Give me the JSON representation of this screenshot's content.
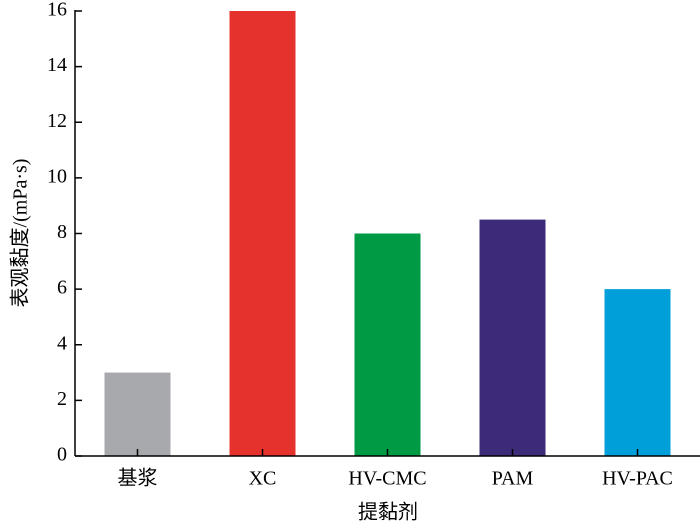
{
  "chart_data": {
    "type": "bar",
    "x_label": "提黏剂",
    "y_label": "表观黏度/(mPa·s)",
    "categories": [
      "基浆",
      "XC",
      "HV-CMC",
      "PAM",
      "HV-PAC"
    ],
    "values": [
      3,
      16,
      8,
      8.5,
      6
    ],
    "colors": [
      "#a7a9ac",
      "#e5322d",
      "#009a44",
      "#3d2a78",
      "#009fd9"
    ],
    "ylim": [
      0,
      16
    ],
    "yticks": [
      0,
      2,
      4,
      6,
      8,
      10,
      12,
      14,
      16
    ]
  }
}
